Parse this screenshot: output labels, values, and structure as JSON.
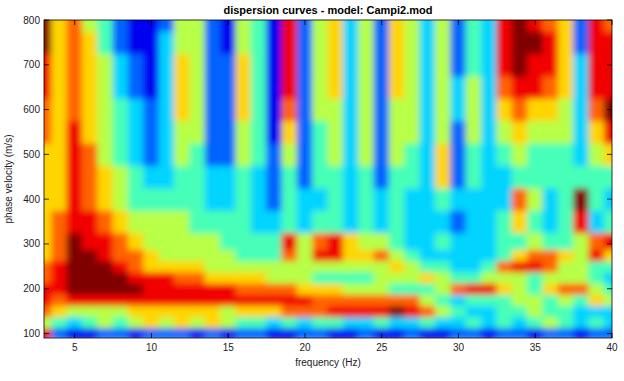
{
  "chart_data": {
    "type": "heatmap",
    "title": "dispersion curves - model: Campi2.mod",
    "x_label": "frequency (Hz)",
    "y_label": "phase velocity (m/s)",
    "xlim": [
      3,
      40
    ],
    "ylim": [
      90,
      800
    ],
    "xticks": [
      5,
      10,
      15,
      20,
      25,
      30,
      35,
      40
    ],
    "yticks": [
      100,
      200,
      300,
      400,
      500,
      600,
      700,
      800
    ],
    "zlim": [
      0,
      9
    ],
    "x": [
      3,
      4,
      5,
      6,
      7,
      8,
      9,
      10,
      11,
      12,
      13,
      14,
      15,
      16,
      17,
      18,
      19,
      20,
      21,
      22,
      23,
      24,
      25,
      26,
      27,
      28,
      29,
      30,
      31,
      32,
      33,
      34,
      35,
      36,
      37,
      38,
      39,
      40
    ],
    "y": [
      100,
      125,
      150,
      175,
      200,
      225,
      250,
      275,
      300,
      350,
      400,
      450,
      500,
      550,
      600,
      650,
      700,
      750,
      800
    ],
    "cells": [
      [
        8,
        2,
        1,
        1,
        2,
        2,
        1,
        2,
        2,
        2,
        1,
        2,
        1,
        2,
        2,
        1,
        1,
        2,
        2,
        1,
        1,
        2,
        1,
        1,
        2,
        1,
        1,
        2,
        2,
        1,
        2,
        2,
        1,
        2,
        2,
        1,
        2,
        2
      ],
      [
        5,
        4,
        3,
        4,
        5,
        4,
        5,
        6,
        5,
        6,
        5,
        6,
        5,
        4,
        4,
        3,
        4,
        3,
        4,
        4,
        3,
        3,
        4,
        3,
        3,
        4,
        3,
        3,
        4,
        3,
        4,
        3,
        4,
        5,
        4,
        3,
        4,
        3
      ],
      [
        7,
        6,
        5,
        5,
        5,
        5,
        6,
        6,
        6,
        6,
        6,
        6,
        5,
        6,
        6,
        6,
        7,
        7,
        7,
        8,
        8,
        8,
        8,
        9,
        8,
        7,
        5,
        4,
        3,
        3,
        4,
        4,
        5,
        4,
        4,
        3,
        3,
        3
      ],
      [
        8,
        7,
        8,
        8,
        8,
        8,
        8,
        8,
        8,
        8,
        8,
        8,
        8,
        8,
        8,
        8,
        8,
        8,
        7,
        7,
        7,
        7,
        7,
        7,
        7,
        5,
        4,
        3,
        4,
        4,
        4,
        5,
        5,
        4,
        5,
        4,
        6,
        5
      ],
      [
        8,
        8,
        9,
        9,
        9,
        9,
        9,
        8,
        8,
        8,
        8,
        8,
        8,
        7,
        7,
        7,
        7,
        6,
        6,
        6,
        5,
        5,
        5,
        4,
        4,
        4,
        5,
        7,
        8,
        8,
        6,
        5,
        4,
        6,
        7,
        7,
        5,
        4
      ],
      [
        7,
        8,
        9,
        9,
        9,
        9,
        8,
        8,
        8,
        7,
        7,
        6,
        6,
        6,
        6,
        5,
        5,
        5,
        4,
        4,
        4,
        4,
        5,
        5,
        5,
        6,
        5,
        4,
        4,
        5,
        5,
        5,
        4,
        5,
        5,
        5,
        4,
        3
      ],
      [
        7,
        8,
        9,
        9,
        9,
        8,
        7,
        6,
        6,
        6,
        6,
        5,
        5,
        5,
        5,
        5,
        5,
        5,
        5,
        5,
        5,
        5,
        5,
        6,
        5,
        4,
        4,
        3,
        3,
        4,
        7,
        8,
        8,
        7,
        5,
        5,
        4,
        4
      ],
      [
        6,
        7,
        9,
        9,
        8,
        7,
        7,
        6,
        5,
        5,
        5,
        5,
        5,
        4,
        4,
        4,
        7,
        5,
        8,
        8,
        6,
        6,
        7,
        5,
        4,
        3,
        3,
        3,
        3,
        3,
        4,
        6,
        7,
        7,
        6,
        5,
        8,
        6
      ],
      [
        6,
        7,
        9,
        8,
        8,
        7,
        6,
        5,
        5,
        5,
        5,
        5,
        4,
        4,
        4,
        4,
        8,
        5,
        7,
        8,
        6,
        5,
        5,
        4,
        3,
        3,
        4,
        3,
        3,
        3,
        4,
        4,
        5,
        4,
        4,
        5,
        7,
        8
      ],
      [
        6,
        7,
        8,
        8,
        7,
        6,
        5,
        5,
        5,
        5,
        4,
        4,
        4,
        4,
        3,
        3,
        4,
        3,
        4,
        4,
        3,
        4,
        3,
        4,
        3,
        3,
        3,
        2,
        3,
        3,
        4,
        6,
        4,
        3,
        4,
        8,
        3,
        4
      ],
      [
        6,
        6,
        8,
        7,
        6,
        5,
        4,
        4,
        4,
        4,
        4,
        3,
        3,
        4,
        3,
        2,
        4,
        3,
        3,
        4,
        3,
        4,
        3,
        4,
        3,
        3,
        4,
        3,
        3,
        3,
        3,
        7,
        5,
        3,
        4,
        9,
        4,
        3
      ],
      [
        6,
        6,
        8,
        7,
        6,
        5,
        4,
        3,
        3,
        4,
        4,
        3,
        3,
        4,
        3,
        2,
        4,
        2,
        4,
        4,
        3,
        4,
        2,
        4,
        4,
        3,
        6,
        2,
        4,
        3,
        3,
        4,
        4,
        4,
        4,
        4,
        4,
        4
      ],
      [
        6,
        6,
        8,
        7,
        5,
        4,
        3,
        2,
        3,
        5,
        4,
        2,
        2,
        5,
        4,
        2,
        5,
        2,
        4,
        5,
        3,
        5,
        2,
        5,
        4,
        3,
        6,
        2,
        4,
        3,
        4,
        5,
        4,
        4,
        4,
        3,
        5,
        6
      ],
      [
        7,
        6,
        8,
        6,
        5,
        4,
        3,
        2,
        3,
        5,
        5,
        2,
        2,
        5,
        4,
        1,
        6,
        2,
        4,
        5,
        3,
        5,
        2,
        5,
        5,
        3,
        5,
        2,
        5,
        3,
        5,
        6,
        5,
        5,
        5,
        3,
        6,
        8
      ],
      [
        7,
        6,
        7,
        6,
        5,
        4,
        3,
        2,
        3,
        6,
        5,
        2,
        2,
        6,
        4,
        1,
        7,
        2,
        5,
        5,
        3,
        5,
        2,
        5,
        5,
        3,
        5,
        3,
        5,
        3,
        6,
        7,
        6,
        6,
        5,
        3,
        7,
        9
      ],
      [
        8,
        6,
        7,
        6,
        5,
        3,
        2,
        1,
        3,
        6,
        5,
        2,
        2,
        6,
        4,
        1,
        8,
        2,
        5,
        6,
        3,
        5,
        2,
        6,
        5,
        3,
        5,
        3,
        5,
        3,
        7,
        8,
        8,
        7,
        6,
        3,
        8,
        8
      ],
      [
        8,
        6,
        7,
        6,
        5,
        3,
        2,
        1,
        3,
        6,
        5,
        2,
        2,
        6,
        4,
        1,
        8,
        2,
        5,
        6,
        3,
        5,
        2,
        6,
        5,
        3,
        5,
        2,
        4,
        3,
        8,
        9,
        8,
        8,
        6,
        3,
        8,
        8
      ],
      [
        9,
        6,
        7,
        6,
        4,
        2,
        1,
        1,
        3,
        5,
        5,
        2,
        1,
        5,
        4,
        1,
        8,
        2,
        5,
        6,
        3,
        5,
        2,
        6,
        5,
        3,
        5,
        2,
        4,
        3,
        8,
        9,
        9,
        8,
        6,
        2,
        8,
        8
      ],
      [
        9,
        6,
        7,
        5,
        4,
        2,
        1,
        1,
        2,
        5,
        5,
        2,
        1,
        5,
        4,
        1,
        8,
        2,
        5,
        6,
        3,
        5,
        2,
        6,
        5,
        3,
        5,
        2,
        4,
        3,
        8,
        9,
        8,
        7,
        6,
        2,
        8,
        7
      ]
    ]
  }
}
